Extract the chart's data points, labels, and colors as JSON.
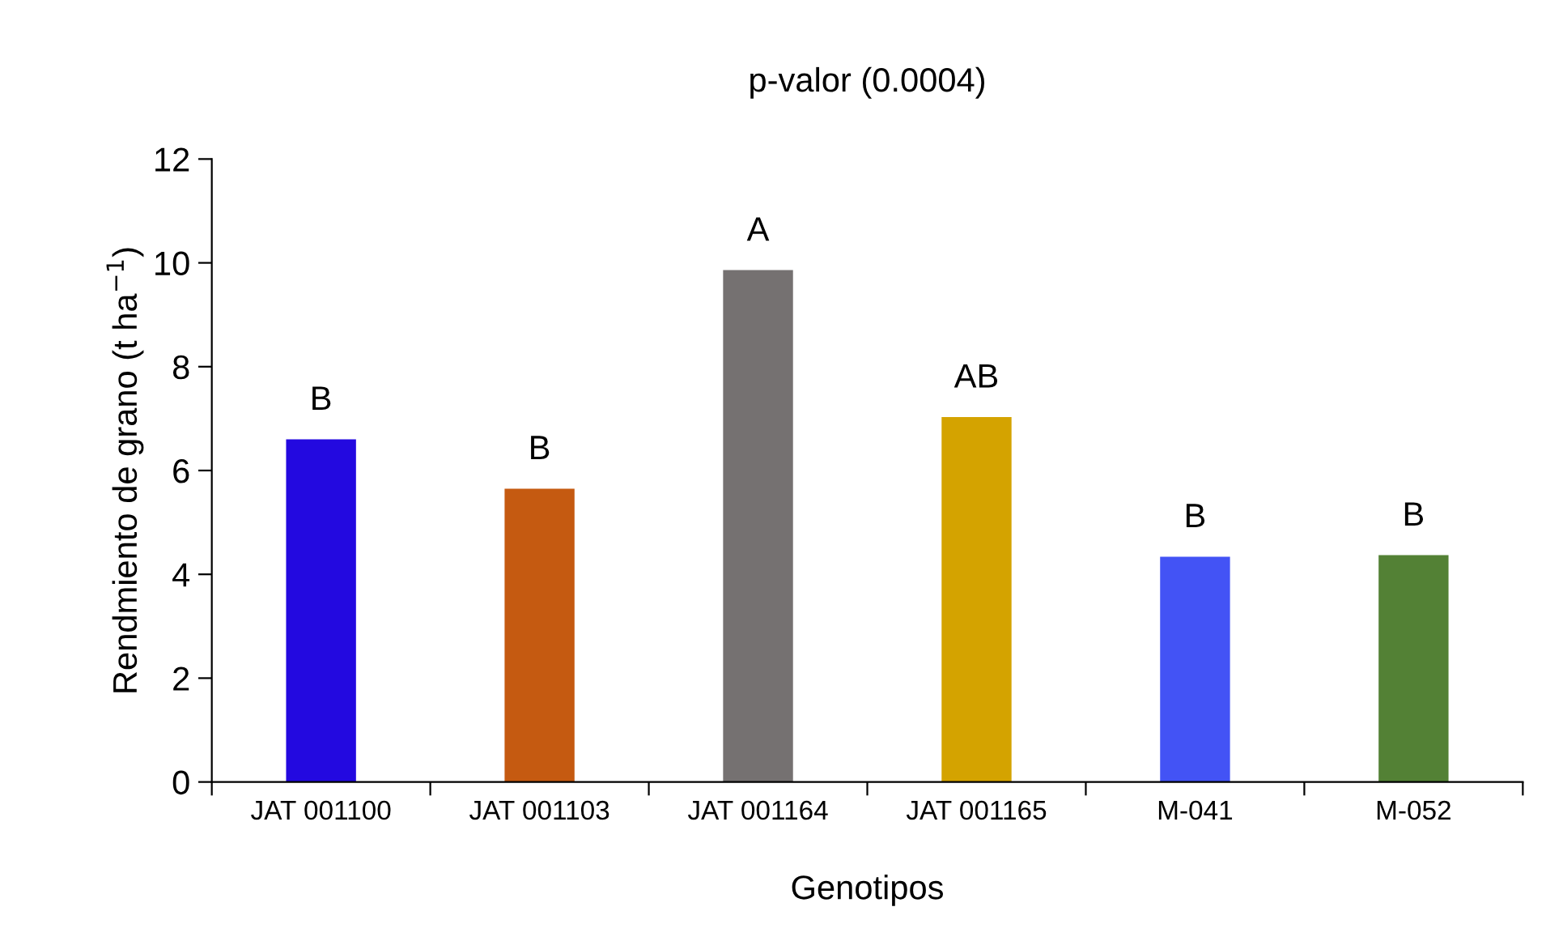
{
  "chart_data": {
    "type": "bar",
    "title": "p-valor (0.0004)",
    "xlabel": "Genotipos",
    "ylabel": "Rendmiento de grano (t ha$^{−1}$)",
    "categories": [
      "JAT 001100",
      "JAT 001103",
      "JAT 001164",
      "JAT 001165",
      "M-041",
      "M-052"
    ],
    "values": [
      6.6,
      5.65,
      9.86,
      7.03,
      4.34,
      4.37
    ],
    "colors": [
      "#2309e0",
      "#c55a11",
      "#757171",
      "#d4a300",
      "#4353f5",
      "#538135"
    ],
    "ylim": [
      0,
      12
    ],
    "yticks": [
      0,
      2,
      4,
      6,
      8,
      10,
      12
    ],
    "grid": false,
    "annotations": [
      {
        "text": "B",
        "x": "JAT 001100",
        "y": 6.6
      },
      {
        "text": "B",
        "x": "JAT 001103",
        "y": 5.65
      },
      {
        "text": "A",
        "x": "JAT 001164",
        "y": 9.86
      },
      {
        "text": "AB",
        "x": "JAT 001165",
        "y": 7.03
      },
      {
        "text": "B",
        "x": "M-041",
        "y": 4.34
      },
      {
        "text": "B",
        "x": "M-052",
        "y": 4.37
      }
    ]
  }
}
